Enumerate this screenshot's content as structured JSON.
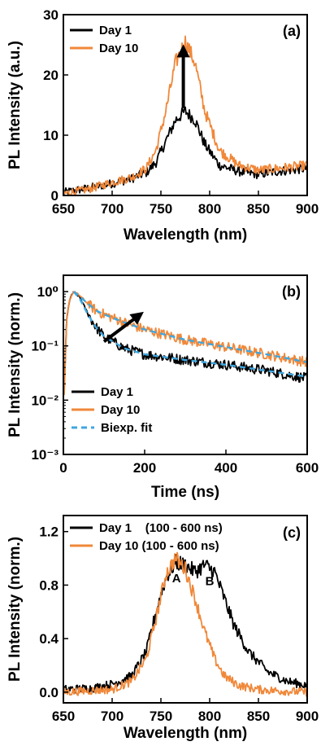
{
  "colors": {
    "day1": "#000000",
    "day10": "#f0883a",
    "fit": "#3fa7e0"
  },
  "chart_data": [
    {
      "type": "line",
      "panel_label": "(a)",
      "xlabel": "Wavelength (nm)",
      "ylabel": "PL Intensity (a.u.)",
      "xlim": [
        650,
        900
      ],
      "ylim": [
        0,
        30
      ],
      "xticks": [
        650,
        700,
        750,
        800,
        850,
        900
      ],
      "yticks": [
        0,
        10,
        20,
        30
      ],
      "yscale": "linear",
      "legend_position": "top-left",
      "series": [
        {
          "name": "Day 1",
          "color": "#000000",
          "x": [
            650,
            675,
            700,
            720,
            735,
            745,
            755,
            765,
            775,
            785,
            795,
            810,
            830,
            850,
            870,
            900
          ],
          "y": [
            0.5,
            1.2,
            2.0,
            2.8,
            3.8,
            5.5,
            9.0,
            12.5,
            14.0,
            12.5,
            8.5,
            5.0,
            4.0,
            3.5,
            4.0,
            4.5
          ]
        },
        {
          "name": "Day 10",
          "color": "#f0883a",
          "x": [
            650,
            675,
            700,
            720,
            735,
            745,
            755,
            765,
            775,
            785,
            795,
            810,
            830,
            850,
            870,
            900
          ],
          "y": [
            0.3,
            1.0,
            2.2,
            3.0,
            4.5,
            7.5,
            14.0,
            22.0,
            25.5,
            22.0,
            14.0,
            7.5,
            5.0,
            4.2,
            4.5,
            5.0
          ]
        }
      ],
      "annotations": [
        {
          "type": "arrow",
          "x": 773,
          "y_from": 14.5,
          "y_to": 24
        }
      ]
    },
    {
      "type": "line",
      "panel_label": "(b)",
      "xlabel": "Time (ns)",
      "ylabel": "PL Intensity (norm.)",
      "xlim": [
        0,
        600
      ],
      "ylim": [
        0.001,
        2
      ],
      "xticks": [
        0,
        200,
        400,
        600
      ],
      "yticks": [
        0.001,
        0.01,
        0.1,
        1
      ],
      "ytick_labels": [
        "10⁻³",
        "10⁻²",
        "10⁻¹",
        "10⁰"
      ],
      "yscale": "log",
      "legend_position": "bottom-left",
      "series": [
        {
          "name": "Day 1",
          "color": "#000000",
          "x": [
            2,
            8,
            15,
            25,
            40,
            60,
            80,
            100,
            150,
            200,
            300,
            400,
            500,
            600
          ],
          "y": [
            0.015,
            0.3,
            0.7,
            1.0,
            0.8,
            0.4,
            0.22,
            0.15,
            0.09,
            0.07,
            0.055,
            0.045,
            0.035,
            0.025
          ]
        },
        {
          "name": "Day 10",
          "color": "#f0883a",
          "x": [
            2,
            8,
            15,
            25,
            40,
            60,
            80,
            100,
            150,
            200,
            300,
            400,
            500,
            600
          ],
          "y": [
            0.012,
            0.3,
            0.7,
            1.0,
            0.85,
            0.6,
            0.45,
            0.38,
            0.27,
            0.2,
            0.13,
            0.095,
            0.07,
            0.05
          ]
        },
        {
          "name": "Biexp. fit",
          "color": "#3fa7e0",
          "dashed": true,
          "x": [
            25,
            40,
            60,
            80,
            100,
            150,
            200,
            300,
            400,
            500,
            600
          ],
          "y": [
            1.0,
            0.75,
            0.38,
            0.22,
            0.15,
            0.09,
            0.07,
            0.055,
            0.045,
            0.035,
            0.027
          ]
        },
        {
          "name": "Biexp. fit (Day 10)",
          "color": "#3fa7e0",
          "dashed": true,
          "show_in_legend": false,
          "x": [
            25,
            40,
            60,
            80,
            100,
            150,
            200,
            300,
            400,
            500,
            600
          ],
          "y": [
            1.0,
            0.82,
            0.6,
            0.45,
            0.38,
            0.27,
            0.2,
            0.13,
            0.095,
            0.07,
            0.05
          ]
        }
      ],
      "annotations": [
        {
          "type": "arrow",
          "x_from": 100,
          "y_from": 0.12,
          "x_to": 185,
          "y_to": 0.36
        }
      ]
    },
    {
      "type": "line",
      "panel_label": "(c)",
      "xlabel": "Wavelength (nm)",
      "ylabel": "PL Intensity (norm.)",
      "xlim": [
        650,
        900
      ],
      "ylim": [
        -0.08,
        1.32
      ],
      "xticks": [
        650,
        700,
        750,
        800,
        850,
        900
      ],
      "yticks": [
        0.0,
        0.4,
        0.8,
        1.2
      ],
      "ytick_labels": [
        "0.0",
        "0.4",
        "0.8",
        "1.2"
      ],
      "yscale": "linear",
      "legend_position": "top-left",
      "series": [
        {
          "name": "Day 1    (100 - 600 ns)",
          "color": "#000000",
          "x": [
            650,
            680,
            700,
            720,
            735,
            745,
            755,
            765,
            775,
            785,
            795,
            805,
            815,
            825,
            840,
            860,
            880,
            900
          ],
          "y": [
            0.02,
            0.03,
            0.06,
            0.12,
            0.3,
            0.6,
            0.85,
            0.97,
            0.95,
            0.9,
            0.95,
            0.9,
            0.7,
            0.5,
            0.3,
            0.15,
            0.08,
            0.05
          ]
        },
        {
          "name": "Day 10 (100 - 600 ns)",
          "color": "#f0883a",
          "x": [
            650,
            700,
            720,
            735,
            745,
            755,
            765,
            775,
            785,
            795,
            805,
            815,
            830,
            850,
            870,
            900
          ],
          "y": [
            0.0,
            0.02,
            0.08,
            0.25,
            0.55,
            0.88,
            1.0,
            0.92,
            0.7,
            0.45,
            0.25,
            0.12,
            0.05,
            0.02,
            0.01,
            0.0
          ]
        }
      ],
      "labels": [
        {
          "text": "A",
          "x": 766,
          "y": 0.82
        },
        {
          "text": "B",
          "x": 800,
          "y": 0.8
        }
      ]
    }
  ]
}
